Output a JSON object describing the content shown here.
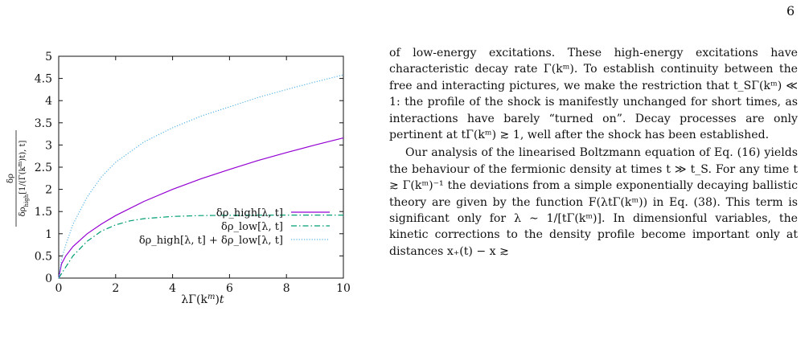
{
  "page_number": "6",
  "chart_data": {
    "type": "line",
    "xlabel": "λΓ(k^m)t",
    "ylabel": "δρ / δρ_high[1/(Γ(k^m)t), t]",
    "xlim": [
      0,
      10
    ],
    "ylim": [
      0,
      5
    ],
    "x_ticks": [
      "0",
      "2",
      "4",
      "6",
      "8",
      "10"
    ],
    "y_ticks": [
      "0",
      "0.5",
      "1",
      "1.5",
      "2",
      "2.5",
      "3",
      "3.5",
      "4",
      "4.5",
      "5"
    ],
    "grid": false,
    "legend_position": "bottom-right",
    "series": [
      {
        "name": "δρ_high[λ, t]",
        "color": "#9400d3",
        "dash": "solid",
        "x": [
          0,
          0.1,
          0.25,
          0.5,
          1,
          1.5,
          2,
          3,
          4,
          5,
          6,
          7,
          8,
          9,
          10
        ],
        "y": [
          0,
          0.32,
          0.5,
          0.71,
          1.0,
          1.22,
          1.41,
          1.73,
          2.0,
          2.24,
          2.45,
          2.65,
          2.83,
          3.0,
          3.16
        ]
      },
      {
        "name": "δρ_low[λ, t]",
        "color": "#009e73",
        "dash": "dashdot",
        "x": [
          0,
          0.25,
          0.5,
          1,
          1.5,
          2,
          2.5,
          3,
          4,
          5,
          6,
          7,
          8,
          10
        ],
        "y": [
          0,
          0.25,
          0.5,
          0.83,
          1.06,
          1.2,
          1.29,
          1.34,
          1.39,
          1.41,
          1.415,
          1.418,
          1.42,
          1.42
        ]
      },
      {
        "name": "δρ_high[λ, t] + δρ_low[λ, t]",
        "color": "#56b4e9",
        "dash": "dotted",
        "x": [
          0,
          0.1,
          0.25,
          0.5,
          1,
          1.5,
          2,
          3,
          4,
          5,
          6,
          7,
          8,
          9,
          10
        ],
        "y": [
          0,
          0.42,
          0.75,
          1.21,
          1.83,
          2.28,
          2.61,
          3.07,
          3.39,
          3.65,
          3.86,
          4.07,
          4.25,
          4.42,
          4.58
        ]
      }
    ]
  },
  "paragraphs": [
    "of low-energy excitations. These high-energy excitations have characteristic decay rate Γ(kᵐ). To establish continuity between the free and interacting pictures, we make the restriction that t_SΓ(kᵐ) ≪ 1: the profile of the shock is manifestly unchanged for short times, as interactions have barely “turned on”. Decay processes are only pertinent at tΓ(kᵐ) ≳ 1, well after the shock has been established.",
    "Our analysis of the linearised Boltzmann equation of Eq. (16) yields the behaviour of the fermionic density at times t ≫ t_S. For any time t ≳ Γ(kᵐ)⁻¹ the deviations from a simple exponentially decaying ballistic theory are given by the function F(λtΓ(kᵐ)) in Eq. (38). This term is significant only for λ ∼ 1/[tΓ(kᵐ)]. In dimensionful variables, the kinetic corrections to the density profile become important only at distances x₊(t) − x ≳"
  ]
}
